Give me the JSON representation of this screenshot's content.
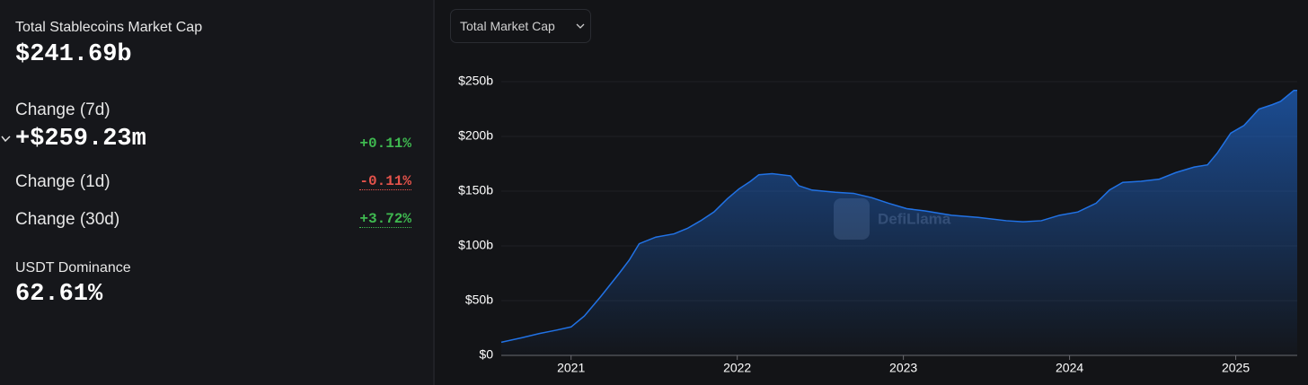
{
  "summary": {
    "label": "Total Stablecoins Market Cap",
    "value": "$241.69b"
  },
  "changes": [
    {
      "label": "Change (7d)",
      "amount": "+$259.23m",
      "percent": "+0.11%"
    },
    {
      "label": "Change (1d)",
      "percent": "-0.11%"
    },
    {
      "label": "Change (30d)",
      "percent": "+3.72%"
    }
  ],
  "dominance": {
    "label": "USDT Dominance",
    "value": "62.61%"
  },
  "dropdown": "Total Market Cap",
  "watermark": "DefiLlama",
  "chart_data": {
    "type": "area",
    "color": "#2172e5",
    "x": [
      2020.58,
      2020.7,
      2020.81,
      2020.91,
      2021.0,
      2021.08,
      2021.18,
      2021.29,
      2021.35,
      2021.41,
      2021.51,
      2021.62,
      2021.7,
      2021.78,
      2021.86,
      2021.94,
      2022.01,
      2022.08,
      2022.13,
      2022.21,
      2022.32,
      2022.37,
      2022.45,
      2022.59,
      2022.7,
      2022.81,
      2022.91,
      2023.02,
      2023.13,
      2023.29,
      2023.45,
      2023.62,
      2023.72,
      2023.83,
      2023.94,
      2024.05,
      2024.16,
      2024.24,
      2024.32,
      2024.43,
      2024.54,
      2024.64,
      2024.75,
      2024.83,
      2024.89,
      2024.97,
      2025.05,
      2025.14,
      2025.22,
      2025.27,
      2025.35,
      2025.37
    ],
    "values": [
      12,
      16,
      20,
      23,
      26,
      36,
      54,
      75,
      87,
      102,
      108,
      111,
      116,
      123,
      131,
      143,
      152,
      159,
      165,
      166,
      164,
      155,
      151,
      149,
      148,
      144,
      139,
      134,
      132,
      128,
      126,
      123,
      122,
      123,
      128,
      131,
      139,
      151,
      158,
      159,
      161,
      167,
      172,
      174,
      185,
      203,
      210,
      225,
      229,
      232,
      242,
      242
    ],
    "xlim": [
      2020.58,
      2025.37
    ],
    "xticks": [
      2021,
      2022,
      2023,
      2024,
      2025
    ],
    "ylim": [
      0,
      250
    ],
    "yticks": [
      {
        "value": 0,
        "label": "$0"
      },
      {
        "value": 50,
        "label": "$50b"
      },
      {
        "value": 100,
        "label": "$100b"
      },
      {
        "value": 150,
        "label": "$150b"
      },
      {
        "value": 200,
        "label": "$200b"
      },
      {
        "value": 250,
        "label": "$250b"
      }
    ],
    "grid": true
  }
}
